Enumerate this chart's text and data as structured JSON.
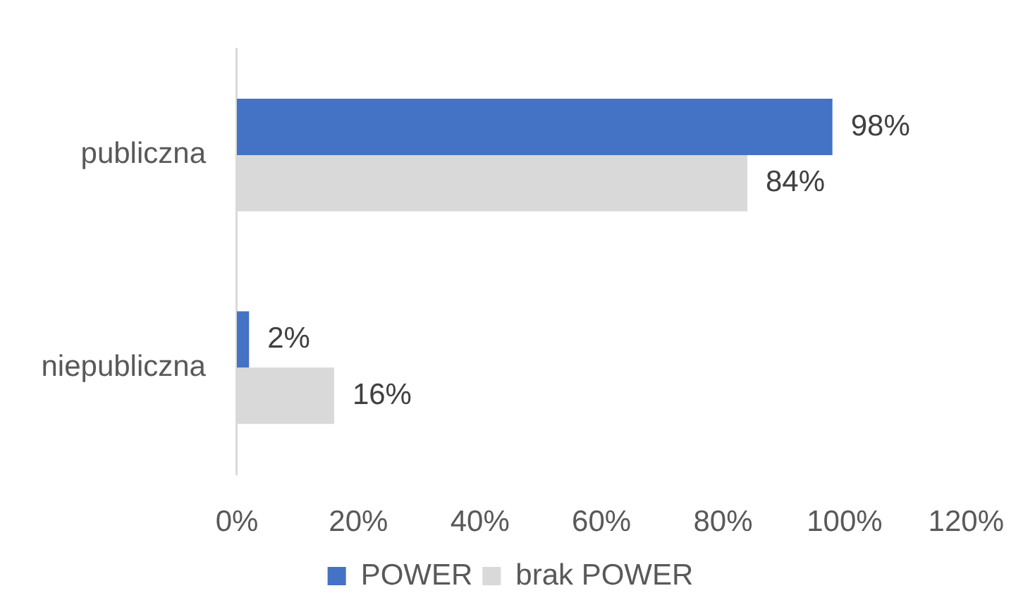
{
  "chart_data": {
    "type": "bar",
    "orientation": "horizontal",
    "categories": [
      "publiczna",
      "niepubliczna"
    ],
    "series": [
      {
        "name": "POWER",
        "color": "#4472c4",
        "values": [
          98,
          2
        ],
        "value_labels": [
          "98%",
          "2%"
        ]
      },
      {
        "name": "brak POWER",
        "color": "#d9d9d9",
        "values": [
          84,
          16
        ],
        "value_labels": [
          "84%",
          "16%"
        ]
      }
    ],
    "xlim": [
      0,
      120
    ],
    "xticks": [
      {
        "value": 0,
        "label": "0%"
      },
      {
        "value": 20,
        "label": "20%"
      },
      {
        "value": 40,
        "label": "40%"
      },
      {
        "value": 60,
        "label": "60%"
      },
      {
        "value": 80,
        "label": "80%"
      },
      {
        "value": 100,
        "label": "100%"
      },
      {
        "value": 120,
        "label": "120%"
      }
    ],
    "grid": false,
    "legend": "bottom"
  }
}
